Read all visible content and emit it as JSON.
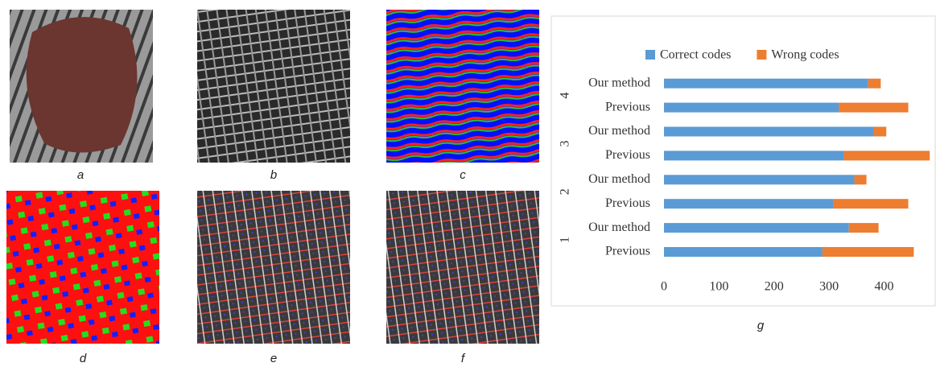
{
  "panels": [
    "a",
    "b",
    "c",
    "d",
    "e",
    "f",
    "g"
  ],
  "chart_data": {
    "type": "stacked-barh",
    "groups": [
      "1",
      "2",
      "3",
      "4"
    ],
    "categories": [
      "Previous",
      "Our method",
      "Previous",
      "Our method",
      "Previous",
      "Our method",
      "Previous",
      "Our method"
    ],
    "series": [
      {
        "name": "Correct codes",
        "color": "#5b9bd5",
        "values": [
          288,
          336,
          308,
          346,
          327,
          381,
          318,
          371
        ]
      },
      {
        "name": "Wrong codes",
        "color": "#ed7d31",
        "values": [
          166,
          54,
          136,
          22,
          156,
          23,
          126,
          23
        ]
      }
    ],
    "xlim": [
      0,
      490
    ],
    "xticks": [
      0,
      100,
      200,
      300,
      400
    ],
    "legend": "top",
    "grid": false
  }
}
